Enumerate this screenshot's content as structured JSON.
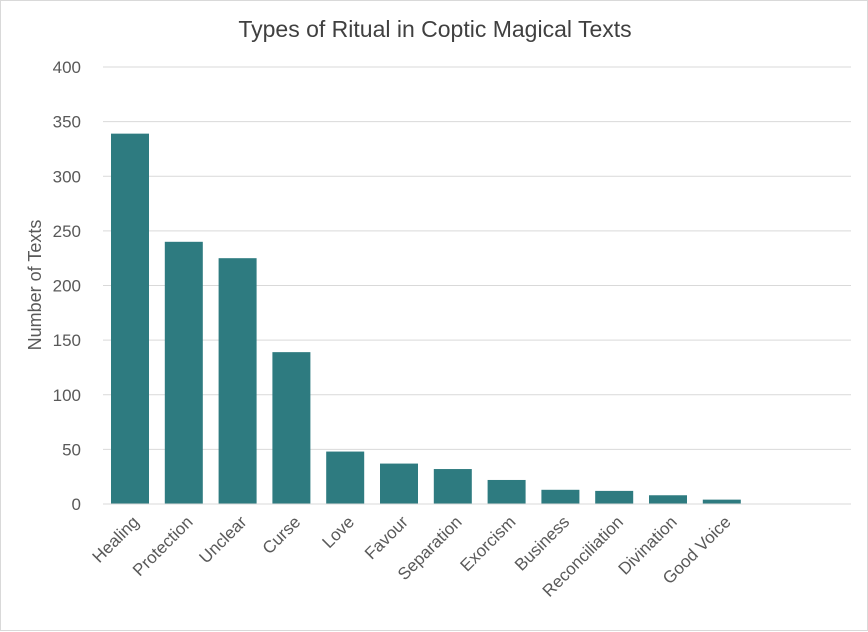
{
  "chart_data": {
    "type": "bar",
    "title": "Types of Ritual in Coptic Magical Texts",
    "xlabel": "",
    "ylabel": "Number of Texts",
    "ylim": [
      0,
      400
    ],
    "yticks": [
      0,
      50,
      100,
      150,
      200,
      250,
      300,
      350,
      400
    ],
    "grid": true,
    "legend": "none",
    "bar_color": "#2e7b80",
    "categories": [
      "Healing",
      "Protection",
      "Unclear",
      "Curse",
      "Love",
      "Favour",
      "Separation",
      "Exorcism",
      "Business",
      "Reconciliation",
      "Divination",
      "Good Voice"
    ],
    "values": [
      339,
      240,
      225,
      139,
      48,
      37,
      32,
      22,
      13,
      12,
      8,
      4
    ]
  }
}
